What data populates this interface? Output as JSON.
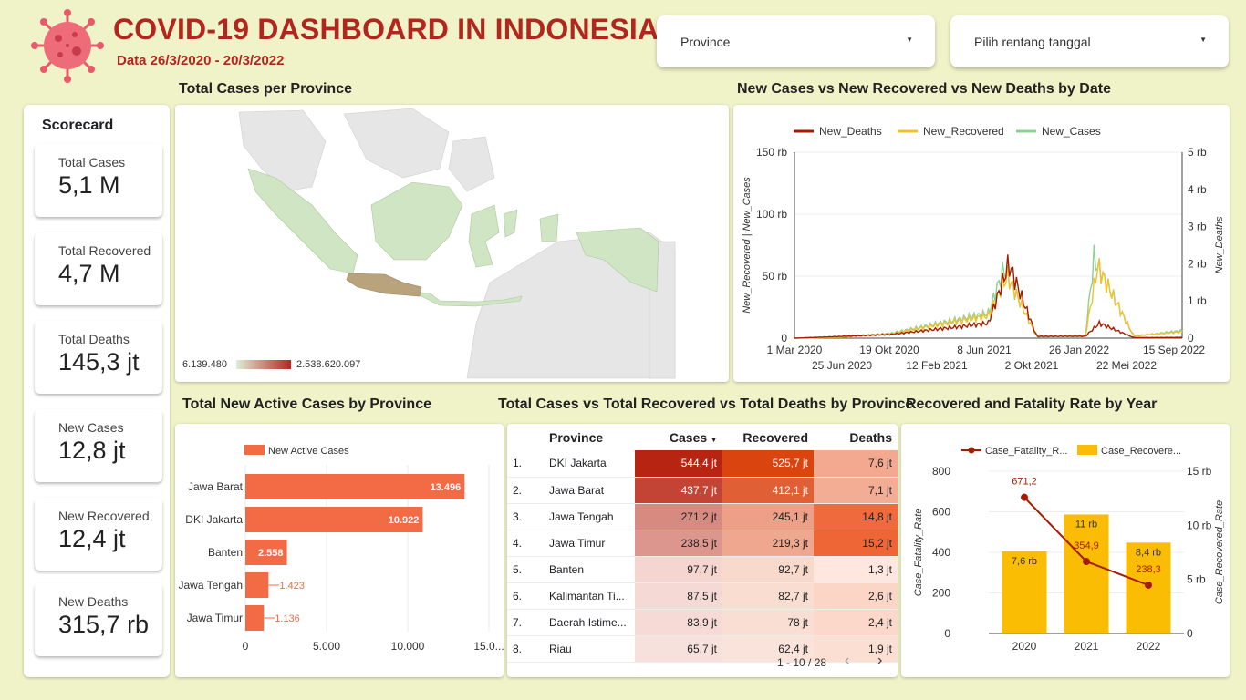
{
  "header": {
    "title": "COVID-19 DASHBOARD IN INDONESIA",
    "subtitle": "Data 26/3/2020 - 20/3/2022",
    "logo_icon": "virus-icon"
  },
  "filters": {
    "province_label": "Province",
    "date_label": "Pilih rentang tanggal"
  },
  "scorecard": {
    "title": "Scorecard",
    "items": [
      {
        "label": "Total Cases",
        "value": "5,1 M"
      },
      {
        "label": "Total Recovered",
        "value": "4,7 M"
      },
      {
        "label": "Total Deaths",
        "value": "145,3 jt"
      },
      {
        "label": "New Cases",
        "value": "12,8 jt"
      },
      {
        "label": "New Recovered",
        "value": "12,4 jt"
      },
      {
        "label": "New Deaths",
        "value": "315,7 rb"
      }
    ]
  },
  "map": {
    "title": "Total Cases per Province",
    "legend_min": "6.139.480",
    "legend_max": "2.538.620.097",
    "colors": {
      "sea": "#ffffff",
      "land_other": "#e3e3e3",
      "low": "#cfe5c3",
      "mid": "#b9a37c",
      "high": "#b3261e"
    }
  },
  "line_chart": {
    "title": "New Cases vs New Recovered vs New Deaths  by Date",
    "legend": [
      "New_Deaths",
      "New_Recovered",
      "New_Cases"
    ],
    "colors": {
      "New_Deaths": "#a61c00",
      "New_Recovered": "#f2c12e",
      "New_Cases": "#8fcf8f"
    },
    "left_axis_title": "New_Recovered | New_Cases",
    "right_axis_title": "New_Deaths",
    "left_ticks": [
      "150 rb",
      "100 rb",
      "50 rb",
      "0"
    ],
    "right_ticks": [
      "5 rb",
      "4 rb",
      "3 rb",
      "2 rb",
      "1 rb",
      "0"
    ],
    "x_ticks_top": [
      "1 Mar 2020",
      "19 Okt 2020",
      "8 Jun 2021",
      "26 Jan 2022",
      "15 Sep 2022"
    ],
    "x_ticks_bottom": [
      "25 Jun 2020",
      "12 Feb 2021",
      "2 Okt 2021",
      "22 Mei 2022"
    ]
  },
  "bar_chart": {
    "title": "Total New Active Cases  by Province",
    "legend": "New Active Cases",
    "color": "#f26b45",
    "x_ticks": [
      "0",
      "5.000",
      "10.000",
      "15.0..."
    ],
    "bars": [
      {
        "label": "Jawa Barat",
        "display": "13.496"
      },
      {
        "label": "DKI Jakarta",
        "display": "10.922"
      },
      {
        "label": "Banten",
        "display": "2.558"
      },
      {
        "label": "Jawa Tengah",
        "display": "1.423"
      },
      {
        "label": "Jawa Timur",
        "display": "1.136"
      }
    ]
  },
  "table": {
    "title": "Total Cases vs Total Recovered vs Total Deaths  by Province",
    "columns": [
      "Province",
      "Cases",
      "Recovered",
      "Deaths"
    ],
    "sort_icon": "sort-desc-icon",
    "rows": [
      {
        "no": "1.",
        "province": "DKI Jakarta",
        "cases": "544,4 jt",
        "recovered": "525,7 jt",
        "deaths": "7,6 jt"
      },
      {
        "no": "2.",
        "province": "Jawa Barat",
        "cases": "437,7 jt",
        "recovered": "412,1 jt",
        "deaths": "7,1 jt"
      },
      {
        "no": "3.",
        "province": "Jawa Tengah",
        "cases": "271,2 jt",
        "recovered": "245,1 jt",
        "deaths": "14,8 jt"
      },
      {
        "no": "4.",
        "province": "Jawa Timur",
        "cases": "238,5 jt",
        "recovered": "219,3 jt",
        "deaths": "15,2 jt"
      },
      {
        "no": "5.",
        "province": "Banten",
        "cases": "97,7 jt",
        "recovered": "92,7 jt",
        "deaths": "1,3 jt"
      },
      {
        "no": "6.",
        "province": "Kalimantan Ti...",
        "cases": "87,5 jt",
        "recovered": "82,7 jt",
        "deaths": "2,6 jt"
      },
      {
        "no": "7.",
        "province": "Daerah Istime...",
        "cases": "83,9 jt",
        "recovered": "78 jt",
        "deaths": "2,4 jt"
      },
      {
        "no": "8.",
        "province": "Riau",
        "cases": "65,7 jt",
        "recovered": "62,4 jt",
        "deaths": "1,9 jt"
      }
    ],
    "pagination": "1 - 10 / 28",
    "prev_icon": "chevron-left-icon",
    "next_icon": "chevron-right-icon"
  },
  "combo_chart": {
    "title": "Recovered and Fatality Rate by Year",
    "legend_line": "Case_Fatality_R...",
    "legend_bar": "Case_Recovere...",
    "left_axis_title": "Case_Fatality_Rate",
    "right_axis_title": "Case_Recovered_Rate",
    "colors": {
      "line": "#a61c00",
      "bar": "#fbbc04"
    },
    "left_ticks": [
      "800",
      "600",
      "400",
      "200",
      "0"
    ],
    "right_ticks": [
      "15 rb",
      "10 rb",
      "5 rb",
      "0"
    ]
  },
  "chart_data": [
    {
      "type": "line",
      "title": "New Cases vs New Recovered vs New Deaths  by Date",
      "x": [
        "2020-03-01",
        "2020-06-25",
        "2020-10-19",
        "2021-02-12",
        "2021-06-08",
        "2021-10-02",
        "2022-01-26",
        "2022-05-22",
        "2022-09-15"
      ],
      "series": [
        {
          "name": "New_Cases",
          "axis": "left",
          "values": [
            0,
            1200,
            4000,
            12000,
            20000,
            1000,
            2000,
            1500,
            6000
          ]
        },
        {
          "name": "New_Recovered",
          "axis": "left",
          "values": [
            0,
            800,
            3500,
            11000,
            18000,
            1500,
            1500,
            2000,
            5000
          ]
        },
        {
          "name": "New_Deaths",
          "axis": "right",
          "values": [
            0,
            50,
            100,
            250,
            400,
            50,
            50,
            15,
            20
          ]
        }
      ],
      "peaks": [
        {
          "series": "New_Cases",
          "date": "2021-07-15",
          "value": 56000
        },
        {
          "series": "New_Cases",
          "date": "2022-02-16",
          "value": 64000
        },
        {
          "series": "New_Deaths",
          "date": "2021-07-27",
          "value": 2000
        },
        {
          "series": "New_Deaths",
          "date": "2022-03-01",
          "value": 400
        }
      ],
      "ylim_left": [
        0,
        150000
      ],
      "ylim_right": [
        0,
        5000
      ],
      "xlabel": "",
      "ylabel": "New_Recovered | New_Cases",
      "y2label": "New_Deaths",
      "legend": "top"
    },
    {
      "type": "bar",
      "orientation": "horizontal",
      "title": "Total New Active Cases  by Province",
      "categories": [
        "Jawa Barat",
        "DKI Jakarta",
        "Banten",
        "Jawa Tengah",
        "Jawa Timur"
      ],
      "series": [
        {
          "name": "New Active Cases",
          "values": [
            13496,
            10922,
            2558,
            1423,
            1136
          ]
        }
      ],
      "xlim": [
        0,
        15000
      ]
    },
    {
      "type": "bar",
      "title": "Recovered and Fatality Rate by Year",
      "categories": [
        "2020",
        "2021",
        "2022"
      ],
      "series": [
        {
          "name": "Case_Recovere...",
          "axis": "right",
          "kind": "bar",
          "values": [
            7600,
            11000,
            8400
          ],
          "labels": [
            "7,6 rb",
            "11 rb",
            "8,4 rb"
          ]
        },
        {
          "name": "Case_Fatality_R...",
          "axis": "left",
          "kind": "line",
          "values": [
            671.2,
            354.9,
            238.3
          ],
          "labels": [
            "671,2",
            "354,9",
            "238,3"
          ]
        }
      ],
      "ylim_left": [
        0,
        800
      ],
      "ylim_right": [
        0,
        15000
      ],
      "ylabel": "Case_Fatality_Rate",
      "y2label": "Case_Recovered_Rate"
    }
  ]
}
